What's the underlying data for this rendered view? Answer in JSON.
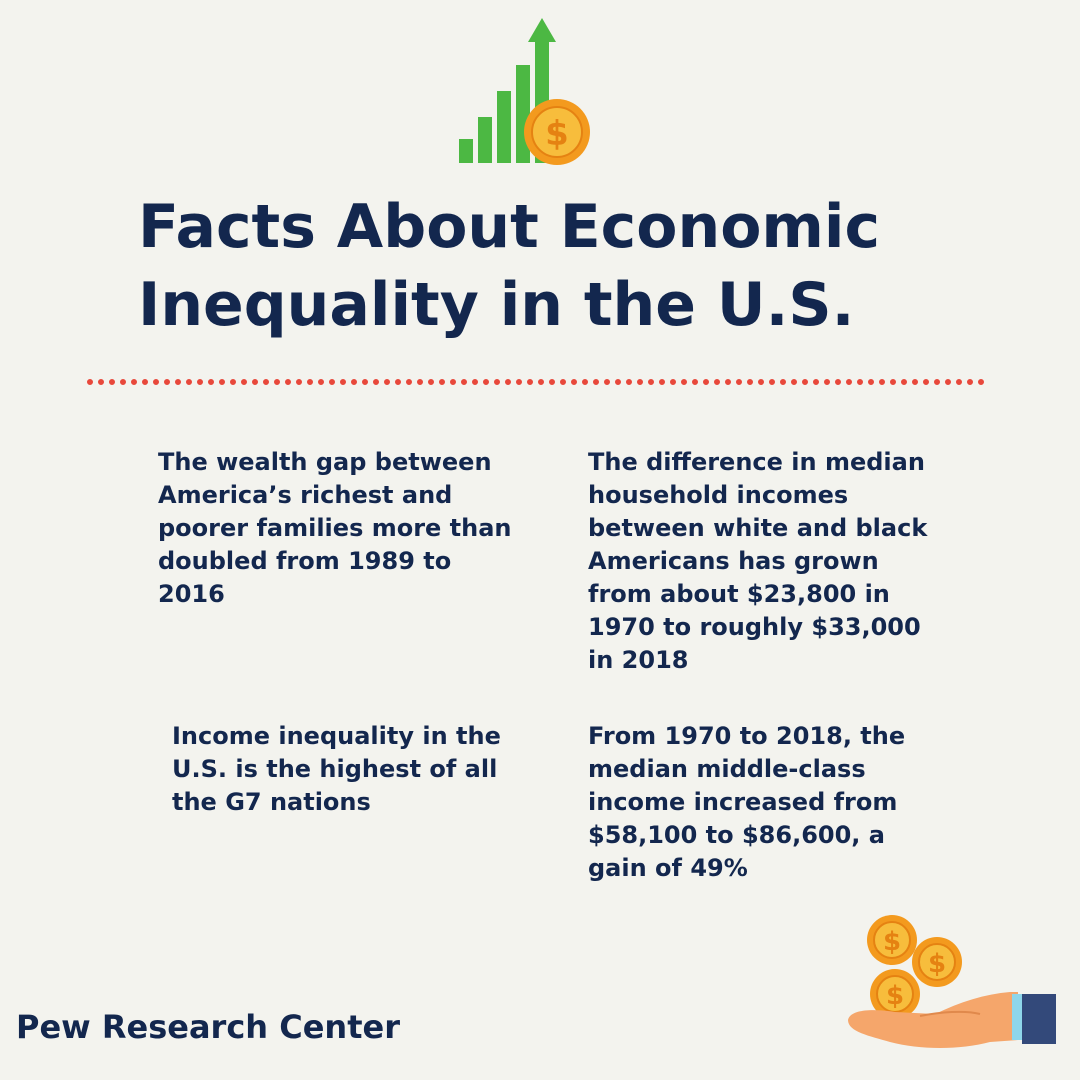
{
  "title": {
    "line1": "Facts About Economic",
    "line2": "Inequality in the U.S."
  },
  "facts": [
    {
      "text": "The wealth gap between America’s richest and poorer families more than doubled from 1989 to 2016"
    },
    {
      "text": "The difference in median household incomes between white and black Americans has grown from about $23,800 in 1970 to roughly $33,000 in 2018"
    },
    {
      "text": "Income inequality in the U.S. is the highest of all the G7 nations"
    },
    {
      "text": "From 1970 to 2018, the median middle-class income increased from $58,100 to $86,600, a gain of 49%"
    }
  ],
  "source": "Pew Research Center",
  "icons": {
    "top": "bar-chart-with-coin-icon",
    "bottom": "hand-with-coins-icon"
  },
  "colors": {
    "navy": "#13274e",
    "green": "#4cb843",
    "coin": "#f39a1e",
    "divider": "#e8483b",
    "background": "#f3f3ee"
  }
}
